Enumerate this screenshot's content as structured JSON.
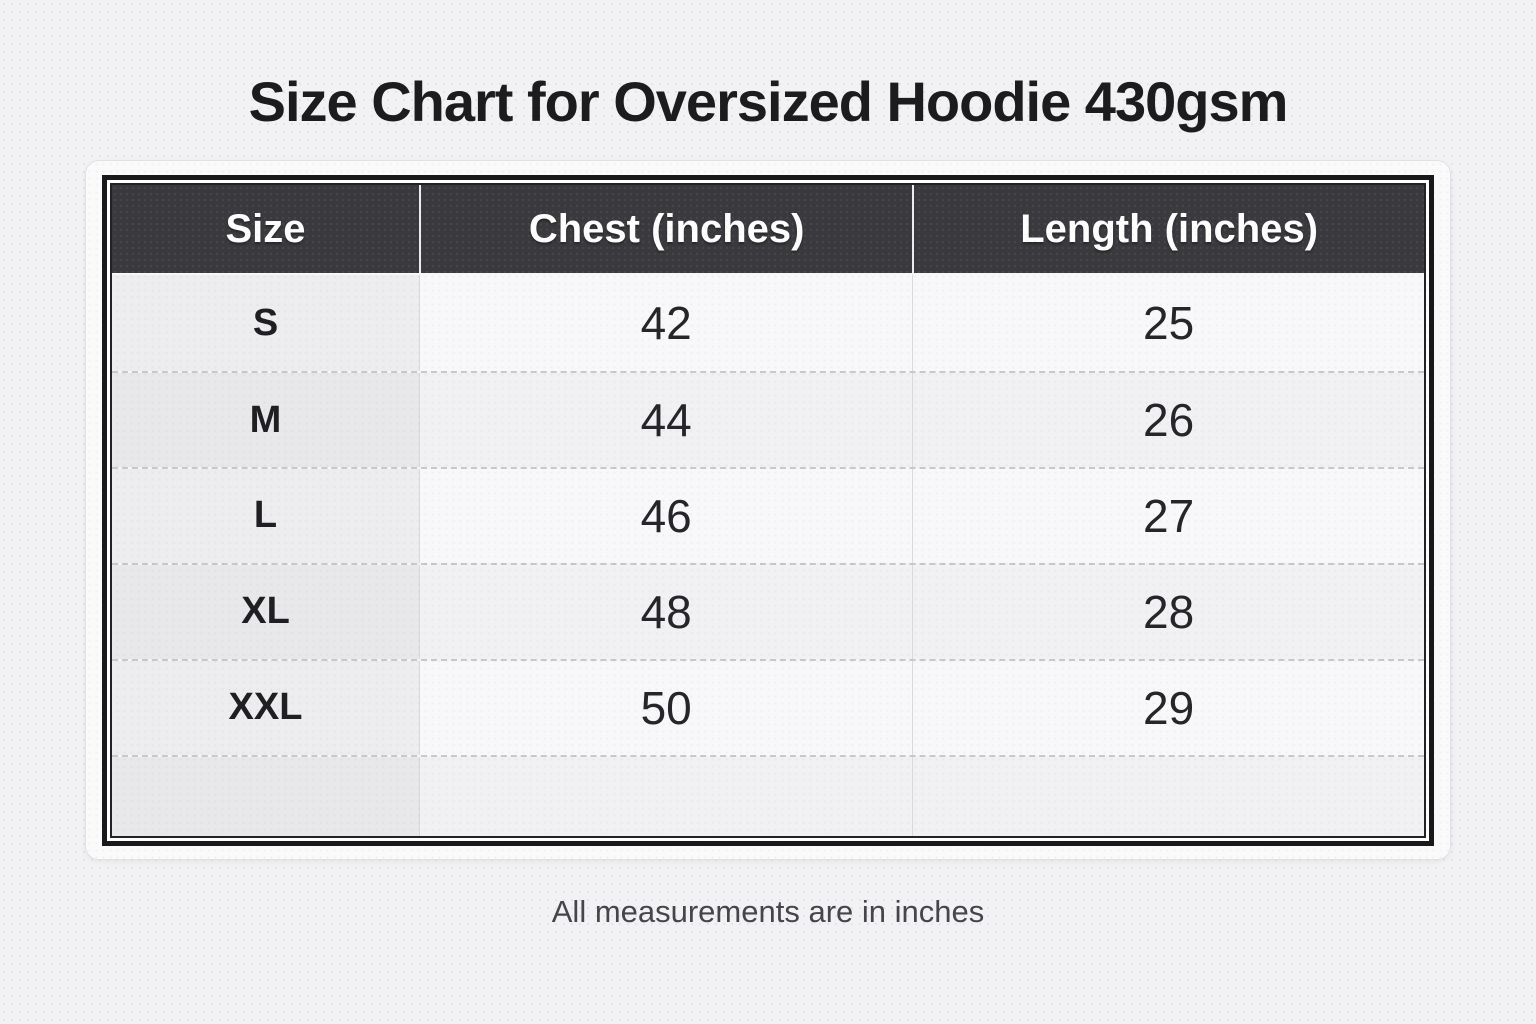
{
  "chart_data": {
    "type": "table",
    "title": "Size Chart for Oversized Hoodie 430gsm",
    "columns": [
      "Size",
      "Chest (inches)",
      "Length (inches)"
    ],
    "rows": [
      [
        "S",
        42,
        25
      ],
      [
        "M",
        44,
        26
      ],
      [
        "L",
        46,
        27
      ],
      [
        "XL",
        48,
        28
      ],
      [
        "XXL",
        50,
        29
      ]
    ],
    "footnote": "All measurements are in inches",
    "layout_hints": {
      "header_position": "top",
      "grid": "dashed horizontal separators, solid light vertical separators",
      "zebra_striping": true,
      "trailing_empty_row": true
    }
  },
  "colors": {
    "page_bg": "#f2f2f4",
    "card_bg": "#fafafb",
    "card_border": "#e1e1e5",
    "frame_dark": "#19191b",
    "header_bg": "#3a3a3e",
    "header_text": "#fdfdfd",
    "row_light": "#f8f8fa",
    "row_dark": "#f1f1f3",
    "size_col_light": "#ededef",
    "size_col_dark": "#e8e8ea",
    "dashed_separator": "#c8c8cc",
    "body_text": "#26262a",
    "footnote_text": "#45454b",
    "title_text": "#1c1c1f"
  }
}
